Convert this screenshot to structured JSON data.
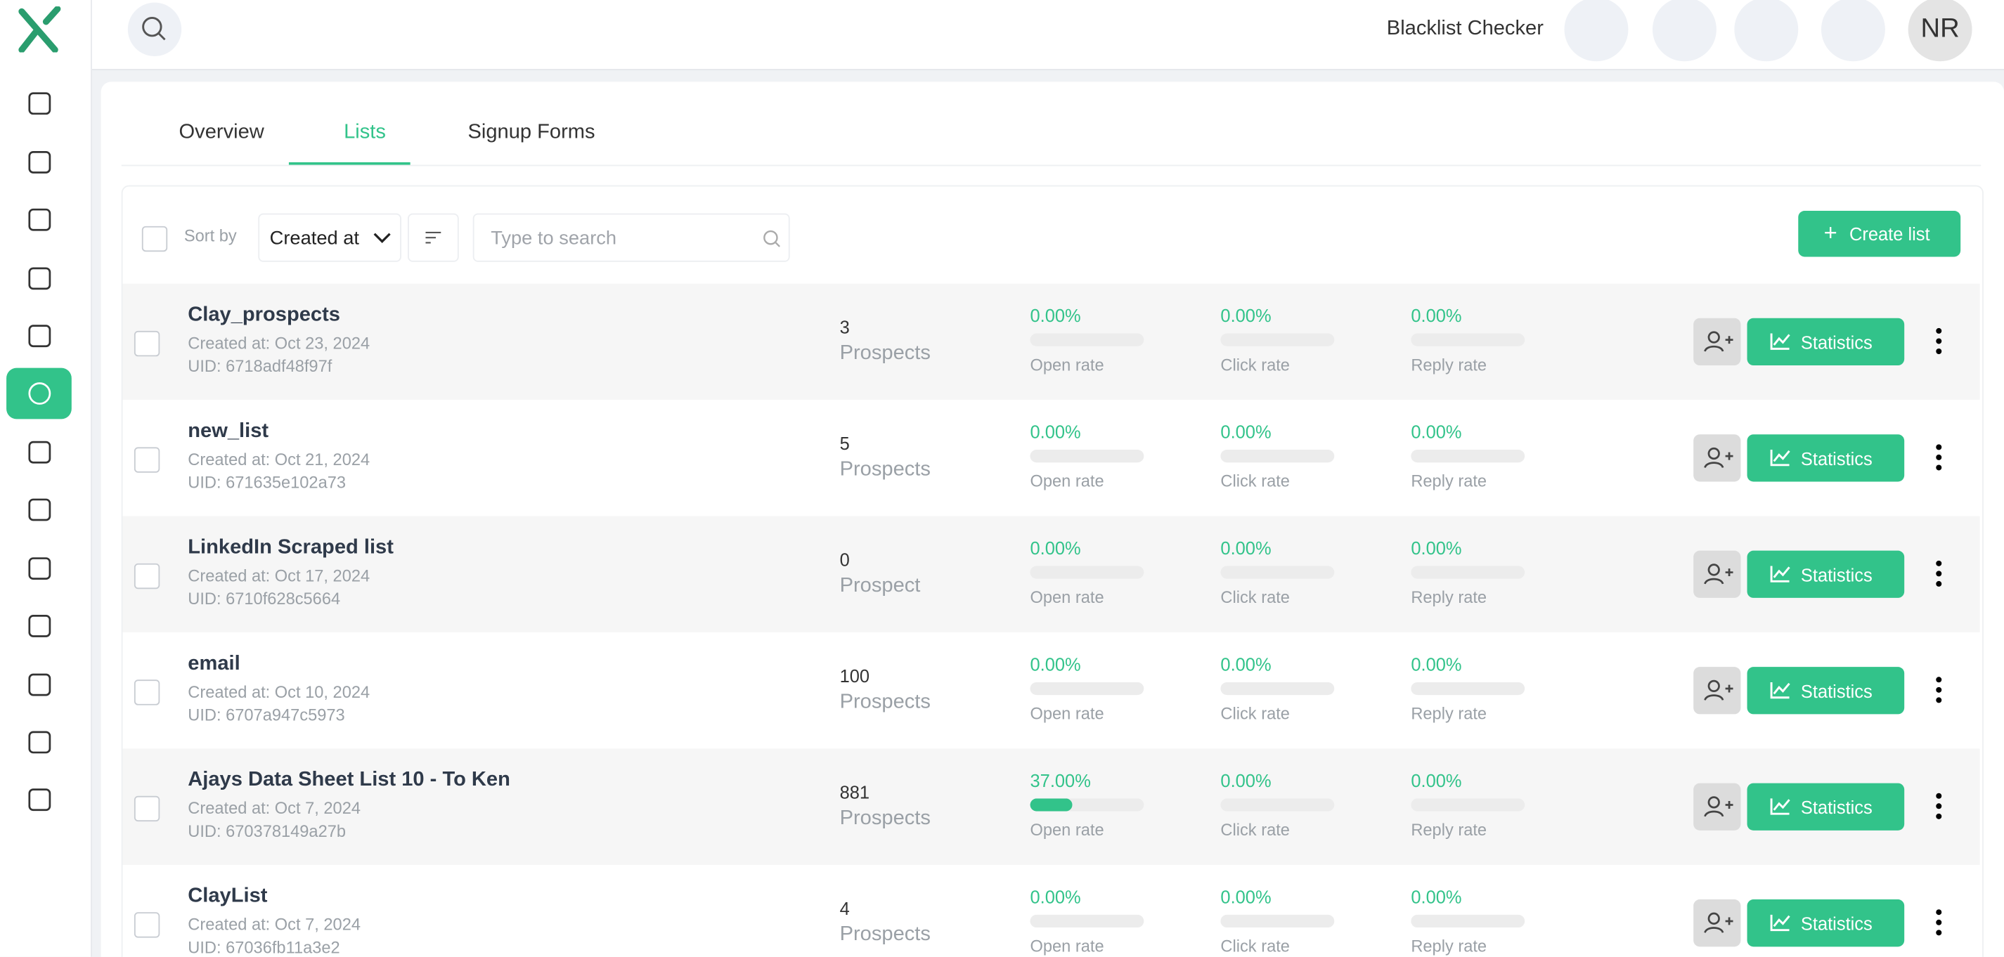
{
  "header": {
    "title": "Blacklist Checker",
    "avatar": "NR"
  },
  "tabs": [
    "Overview",
    "Lists",
    "Signup Forms"
  ],
  "toolbar": {
    "sort_label": "Sort by",
    "sort_value": "Created at",
    "search_placeholder": "Type to search",
    "create_button": "Create list"
  },
  "table": {
    "rate_labels": [
      "Open rate",
      "Click rate",
      "Reply rate"
    ],
    "action_label": "Statistics",
    "rows": [
      {
        "name": "Clay_prospects",
        "created": "Created at: Oct 23, 2024",
        "uid": "UID: 6718adf48f97f",
        "count": 3,
        "count_label": "Prospects",
        "rates": [
          {
            "value": 0,
            "label": "0.00%"
          },
          {
            "value": 0,
            "label": "0.00%"
          },
          {
            "value": 0,
            "label": "0.00%"
          }
        ]
      },
      {
        "name": "new_list",
        "created": "Created at: Oct 21, 2024",
        "uid": "UID: 671635e102a73",
        "count": 5,
        "count_label": "Prospects",
        "rates": [
          {
            "value": 0,
            "label": "0.00%"
          },
          {
            "value": 0,
            "label": "0.00%"
          },
          {
            "value": 0,
            "label": "0.00%"
          }
        ]
      },
      {
        "name": "LinkedIn Scraped list",
        "created": "Created at: Oct 17, 2024",
        "uid": "UID: 6710f628c5664",
        "count": 0,
        "count_label": "Prospect",
        "rates": [
          {
            "value": 0,
            "label": "0.00%"
          },
          {
            "value": 0,
            "label": "0.00%"
          },
          {
            "value": 0,
            "label": "0.00%"
          }
        ]
      },
      {
        "name": "email",
        "created": "Created at: Oct 10, 2024",
        "uid": "UID: 6707a947c5973",
        "count": 100,
        "count_label": "Prospects",
        "rates": [
          {
            "value": 0,
            "label": "0.00%"
          },
          {
            "value": 0,
            "label": "0.00%"
          },
          {
            "value": 0,
            "label": "0.00%"
          }
        ]
      },
      {
        "name": "Ajays Data Sheet List 10 - To Ken",
        "created": "Created at: Oct 7, 2024",
        "uid": "UID: 670378149a27b",
        "count": 881,
        "count_label": "Prospects",
        "rates": [
          {
            "value": 37,
            "label": "37.00%"
          },
          {
            "value": 0,
            "label": "0.00%"
          },
          {
            "value": 0,
            "label": "0.00%"
          }
        ]
      },
      {
        "name": "ClayList",
        "created": "Created at: Oct 7, 2024",
        "uid": "UID: 67036fb11a3e2",
        "count": 4,
        "count_label": "Prospects",
        "rates": [
          {
            "value": 0,
            "label": "0.00%"
          },
          {
            "value": 0,
            "label": "0.00%"
          },
          {
            "value": 0,
            "label": "0.00%"
          }
        ]
      }
    ]
  }
}
